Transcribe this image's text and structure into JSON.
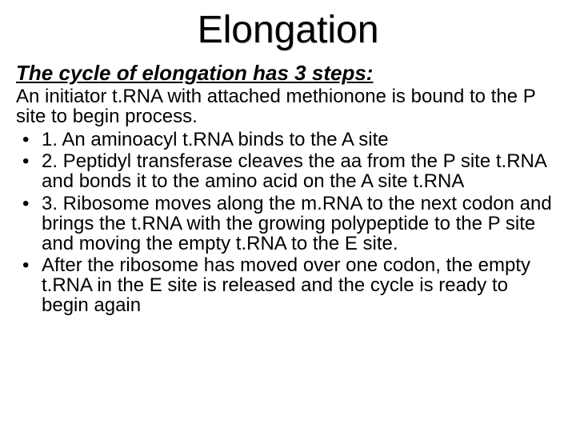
{
  "title": "Elongation",
  "subtitle": "The cycle of elongation has 3 steps:",
  "intro": "An initiator t.RNA with attached methionone is bound to the P site to begin process.",
  "bullets": {
    "item1": "1.  An aminoacyl t.RNA binds to the A site",
    "item2": "2.  Peptidyl transferase cleaves the aa from the P site t.RNA and bonds it to the amino acid on the A site t.RNA",
    "item3": "3.  Ribosome moves along the m.RNA to the next codon and brings the t.RNA with the growing polypeptide to the P site and moving the empty t.RNA to the E site.",
    "item4": "After the ribosome has moved over one codon, the empty t.RNA in the E site is released and the cycle is ready to begin again"
  },
  "colors": {
    "background": "#ffffff",
    "text": "#000000",
    "title_shadow": "#cccccc"
  },
  "fonts": {
    "family": "Comic Sans MS",
    "title_size": 48,
    "subtitle_size": 26,
    "body_size": 24
  }
}
